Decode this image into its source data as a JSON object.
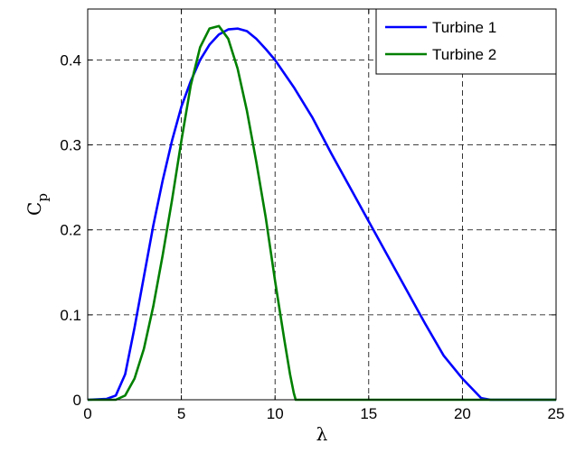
{
  "chart_data": {
    "type": "line",
    "title": "",
    "xlabel": "λ",
    "ylabel": {
      "main": "C",
      "sub": "p"
    },
    "xlim": [
      0,
      25
    ],
    "ylim": [
      0,
      0.46
    ],
    "xticks": [
      0,
      5,
      10,
      15,
      20,
      25
    ],
    "xtick_labels": [
      "0",
      "5",
      "10",
      "15",
      "20",
      "25"
    ],
    "yticks": [
      0,
      0.1,
      0.2,
      0.3,
      0.4
    ],
    "ytick_labels": [
      "0",
      "0.1",
      "0.2",
      "0.3",
      "0.4"
    ],
    "grid": true,
    "legend": "top-right",
    "series": [
      {
        "name": "Turbine 1",
        "color": "#0000ff",
        "x": [
          0,
          1,
          1.5,
          2,
          2.5,
          3,
          3.5,
          4,
          4.5,
          5,
          5.5,
          6,
          6.5,
          7,
          7.5,
          8,
          8.5,
          9,
          9.5,
          10,
          11,
          12,
          13,
          14,
          15,
          16,
          17,
          18,
          19,
          20,
          21,
          21.5,
          25
        ],
        "y": [
          0,
          0.001,
          0.005,
          0.03,
          0.085,
          0.145,
          0.205,
          0.258,
          0.305,
          0.345,
          0.375,
          0.4,
          0.418,
          0.43,
          0.436,
          0.437,
          0.434,
          0.425,
          0.413,
          0.4,
          0.368,
          0.332,
          0.29,
          0.25,
          0.21,
          0.17,
          0.13,
          0.09,
          0.052,
          0.025,
          0.002,
          0,
          0
        ]
      },
      {
        "name": "Turbine 2",
        "color": "#008000",
        "x": [
          0,
          1.5,
          2,
          2.5,
          3,
          3.5,
          4,
          4.5,
          5,
          5.5,
          6,
          6.5,
          7,
          7.5,
          8,
          8.5,
          9,
          9.5,
          10,
          10.5,
          10.8,
          11,
          11.1,
          25
        ],
        "y": [
          0,
          0,
          0.005,
          0.025,
          0.06,
          0.11,
          0.17,
          0.235,
          0.305,
          0.37,
          0.415,
          0.437,
          0.44,
          0.425,
          0.39,
          0.34,
          0.28,
          0.215,
          0.14,
          0.07,
          0.03,
          0.008,
          0,
          0
        ]
      }
    ]
  }
}
